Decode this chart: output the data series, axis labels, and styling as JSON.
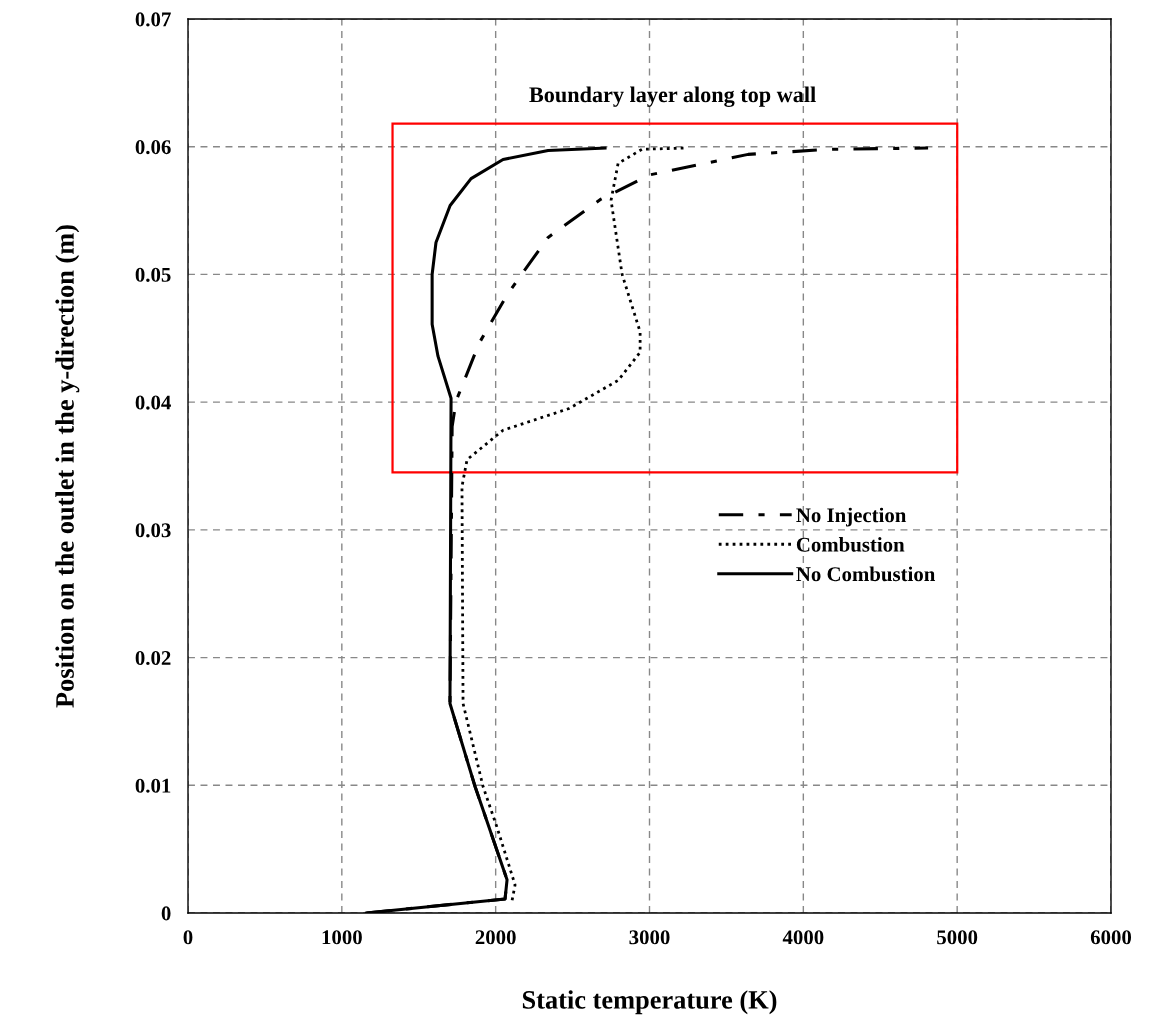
{
  "chart_data": {
    "type": "line",
    "xlabel": "Static temperature (K)",
    "ylabel": "Position on the outlet in the y-direction (m)",
    "xlim": [
      0,
      6000
    ],
    "xticks": [
      0,
      1000,
      2000,
      3000,
      4000,
      5000,
      6000
    ],
    "ylim": [
      0,
      0.07
    ],
    "yticks": [
      0,
      0.01,
      0.02,
      0.03,
      0.04,
      0.05,
      0.06,
      0.07
    ],
    "grid": true,
    "legend": "right",
    "marker": "none",
    "annotations": [
      "Boundary layer along top wall"
    ],
    "series": [
      {
        "name": "No Injection",
        "color": "#000000",
        "line_style": "dashdot",
        "x": [
          1160,
          2061,
          2074,
          1866,
          1703,
          1717,
          1743,
          1892,
          2074,
          2341,
          2685,
          3004,
          3641,
          4174,
          4811
        ],
        "values": [
          0.0,
          0.0011,
          0.0026,
          0.0099,
          0.0164,
          0.0381,
          0.0401,
          0.0446,
          0.0484,
          0.0529,
          0.0559,
          0.0578,
          0.0594,
          0.0598,
          0.0599
        ]
      },
      {
        "name": "Combustion",
        "color": "#000000",
        "line_style": "dotted",
        "x": [
          2107,
          2126,
          2009,
          1918,
          1788,
          1781,
          1814,
          2048,
          2477,
          2796,
          2939,
          2939,
          2822,
          2750,
          2796,
          2952,
          3244
        ],
        "values": [
          0.001,
          0.0022,
          0.0067,
          0.0099,
          0.0164,
          0.0334,
          0.0355,
          0.0378,
          0.0395,
          0.0417,
          0.0439,
          0.0455,
          0.05,
          0.0558,
          0.0587,
          0.0598,
          0.0599
        ]
      },
      {
        "name": "No Combustion",
        "color": "#000000",
        "line_style": "solid",
        "x": [
          1160,
          2061,
          2074,
          1866,
          1703,
          1710,
          1625,
          1587,
          1587,
          1612,
          1704,
          1840,
          2048,
          2341,
          2711
        ],
        "values": [
          0.0,
          0.0011,
          0.0026,
          0.0099,
          0.0164,
          0.0403,
          0.0436,
          0.0461,
          0.05,
          0.0525,
          0.0554,
          0.0575,
          0.059,
          0.0597,
          0.0599
        ]
      }
    ]
  }
}
